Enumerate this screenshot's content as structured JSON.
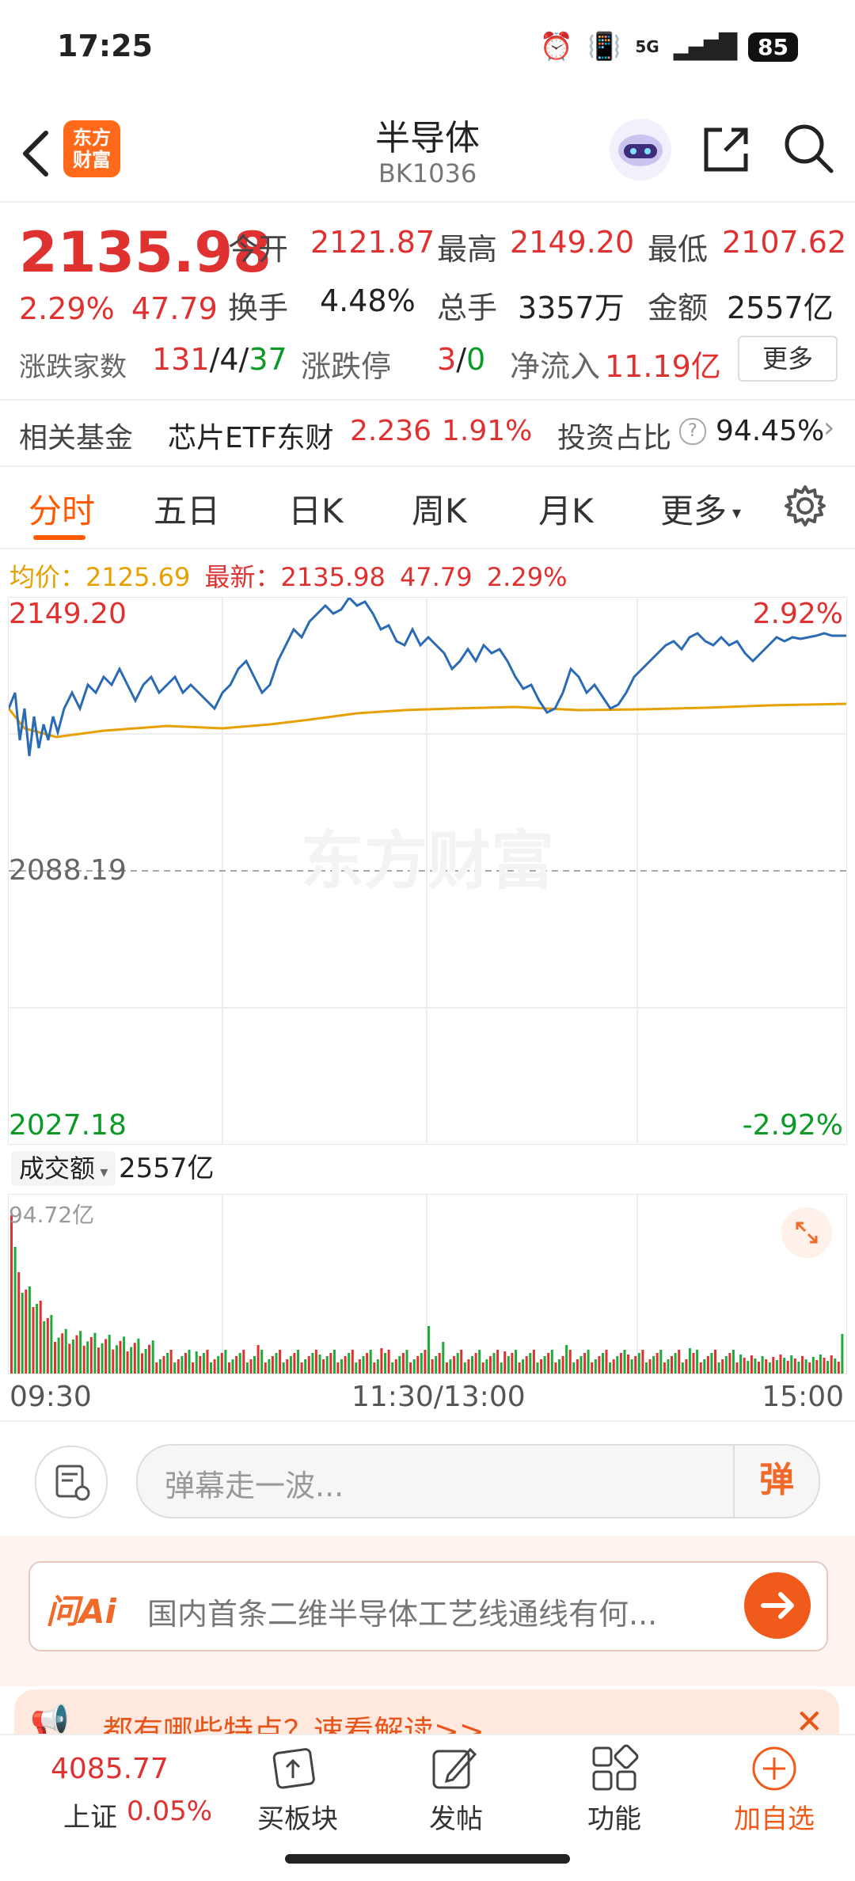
{
  "status_bar": {
    "time": "17:25",
    "network": "5G",
    "battery": "85"
  },
  "nav": {
    "logo_line1": "东方",
    "logo_line2": "财富",
    "title": "半导体",
    "code": "BK1036"
  },
  "quote": {
    "price": "2135.98",
    "change_pct": "2.29%",
    "change": "47.79",
    "open_label": "今开",
    "open": "2121.87",
    "high_label": "最高",
    "high": "2149.20",
    "low_label": "最低",
    "low": "2107.62",
    "turnover_label": "换手",
    "turnover": "4.48%",
    "volume_label": "总手",
    "volume": "3357万",
    "amount_label": "金额",
    "amount": "2557亿",
    "breadth_label": "涨跌家数",
    "up": "131",
    "flat": "4",
    "down": "37",
    "limit_label": "涨跌停",
    "limit_up": "3",
    "limit_down": "0",
    "inflow_label": "净流入",
    "inflow": "11.19亿",
    "more": "更多"
  },
  "fund": {
    "label": "相关基金",
    "name": "芯片ETF东财",
    "price": "2.236",
    "pct": "1.91%",
    "ratio_label": "投资占比",
    "ratio": "94.45%"
  },
  "tabs": [
    "分时",
    "五日",
    "日K",
    "周K",
    "月K",
    "更多"
  ],
  "info_line": {
    "avg_label": "均价：",
    "avg": "2125.69",
    "latest_label": "最新：",
    "latest": "2135.98",
    "chg": "47.79",
    "pct": "2.29%"
  },
  "chart_data": {
    "type": "line",
    "y_max": "2149.20",
    "y_mid": "2088.19",
    "y_min": "2027.18",
    "pct_max": "2.92%",
    "pct_min": "-2.92%",
    "watermark": "东方财富",
    "x_labels": [
      "09:30",
      "11:30/13:00",
      "15:00"
    ],
    "volume_label": "成交额",
    "volume_total": "2557亿",
    "volume_max": "94.72亿"
  },
  "danmaku": {
    "placeholder": "弹幕走一波...",
    "button": "弹"
  },
  "ai": {
    "label": "问Ai",
    "text": "国内首条二维半导体工艺线通线有何..."
  },
  "banner": {
    "text": "都有哪些特点？速看解读>>"
  },
  "bottom": {
    "index_value": "4085.77",
    "index_name": "上证",
    "index_pct": "0.05%",
    "items": [
      "买板块",
      "发帖",
      "功能",
      "加自选"
    ]
  }
}
